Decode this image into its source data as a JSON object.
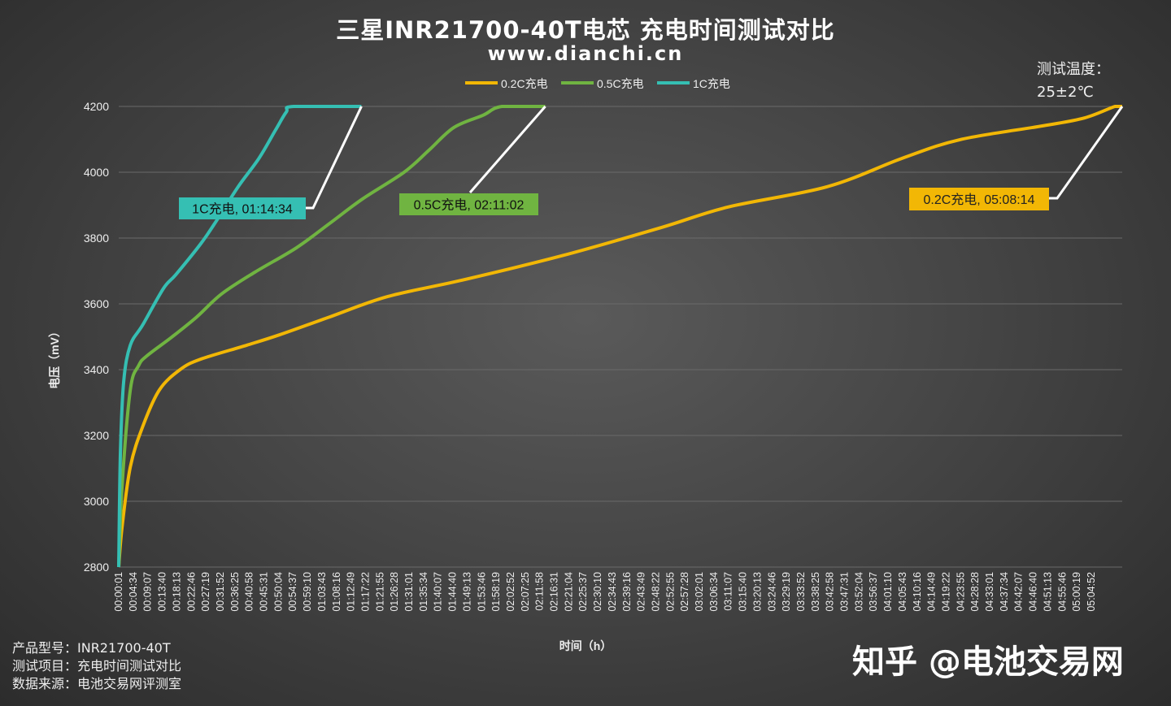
{
  "chart_data": {
    "type": "line",
    "title": "三星INR21700-40T电芯 充电时间测试对比",
    "subtitle": "www.dianchi.cn",
    "xlabel": "时间（h）",
    "ylabel": "电压（mV）",
    "ylim": [
      2800,
      4200
    ],
    "yticks": [
      2800,
      3000,
      3200,
      3400,
      3600,
      3800,
      4000,
      4200
    ],
    "xlim": [
      "00:00:01",
      "05:08:14"
    ],
    "grid": true,
    "legend_position": "top",
    "xtick_labels": [
      "00:00:01",
      "00:04:34",
      "00:09:07",
      "00:13:40",
      "00:18:13",
      "00:22:46",
      "00:27:19",
      "00:31:52",
      "00:36:25",
      "00:40:58",
      "00:45:31",
      "00:50:04",
      "00:54:37",
      "00:59:10",
      "01:03:43",
      "01:08:16",
      "01:12:49",
      "01:17:22",
      "01:21:55",
      "01:26:28",
      "01:31:01",
      "01:35:34",
      "01:40:07",
      "01:44:40",
      "01:49:13",
      "01:53:46",
      "01:58:19",
      "02:02:52",
      "02:07:25",
      "02:11:58",
      "02:16:31",
      "02:21:04",
      "02:25:37",
      "02:30:10",
      "02:34:43",
      "02:39:16",
      "02:43:49",
      "02:48:22",
      "02:52:55",
      "02:57:28",
      "03:02:01",
      "03:06:34",
      "03:11:07",
      "03:15:40",
      "03:20:13",
      "03:24:46",
      "03:29:19",
      "03:33:52",
      "03:38:25",
      "03:42:58",
      "03:47:31",
      "03:52:04",
      "03:56:37",
      "04:01:10",
      "04:05:43",
      "04:10:16",
      "04:14:49",
      "04:19:22",
      "04:23:55",
      "04:28:28",
      "04:33:01",
      "04:37:34",
      "04:42:07",
      "04:46:40",
      "04:51:13",
      "04:55:46",
      "05:00:19",
      "05:04:52"
    ],
    "series": [
      {
        "name": "0.2C充电",
        "color": "#f2b705",
        "end_label": "0.2C充电, 05:08:14",
        "points": [
          [
            "00:00:01",
            2800
          ],
          [
            "00:01:01",
            2919
          ],
          [
            "00:03:34",
            3104
          ],
          [
            "00:07:23",
            3227
          ],
          [
            "00:12:29",
            3338
          ],
          [
            "00:18:51",
            3400
          ],
          [
            "00:25:14",
            3432
          ],
          [
            "00:39:15",
            3474
          ],
          [
            "00:49:26",
            3506
          ],
          [
            "01:04:44",
            3560
          ],
          [
            "01:22:34",
            3622
          ],
          [
            "01:45:30",
            3672
          ],
          [
            "02:16:05",
            3746
          ],
          [
            "02:46:40",
            3832
          ],
          [
            "03:07:02",
            3894
          ],
          [
            "03:37:37",
            3956
          ],
          [
            "04:00:33",
            4042
          ],
          [
            "04:18:24",
            4099
          ],
          [
            "04:43:53",
            4141
          ],
          [
            "04:56:38",
            4165
          ],
          [
            "05:06:00",
            4200
          ],
          [
            "05:08:14",
            4200
          ]
        ]
      },
      {
        "name": "0.5C充电",
        "color": "#70b441",
        "end_label": "0.5C充电, 02:11:02",
        "points": [
          [
            "00:00:01",
            2800
          ],
          [
            "00:01:01",
            3042
          ],
          [
            "00:03:34",
            3338
          ],
          [
            "00:06:07",
            3412
          ],
          [
            "00:08:40",
            3442
          ],
          [
            "00:16:19",
            3499
          ],
          [
            "00:23:57",
            3560
          ],
          [
            "00:31:36",
            3630
          ],
          [
            "00:41:48",
            3696
          ],
          [
            "00:54:32",
            3770
          ],
          [
            "01:04:44",
            3844
          ],
          [
            "01:14:55",
            3919
          ],
          [
            "01:27:40",
            4000
          ],
          [
            "01:35:18",
            4067
          ],
          [
            "01:42:57",
            4136
          ],
          [
            "01:51:52",
            4173
          ],
          [
            "01:57:44",
            4200
          ],
          [
            "02:11:02",
            4200
          ]
        ]
      },
      {
        "name": "1C充电",
        "color": "#35bfb3",
        "end_label": "1C充电, 01:14:34",
        "points": [
          [
            "00:00:01",
            2800
          ],
          [
            "00:00:31",
            3141
          ],
          [
            "00:01:32",
            3363
          ],
          [
            "00:03:34",
            3474
          ],
          [
            "00:07:23",
            3536
          ],
          [
            "00:13:46",
            3647
          ],
          [
            "00:17:35",
            3689
          ],
          [
            "00:25:14",
            3783
          ],
          [
            "00:30:20",
            3857
          ],
          [
            "00:36:42",
            3956
          ],
          [
            "00:43:04",
            4042
          ],
          [
            "00:48:10",
            4128
          ],
          [
            "00:51:29",
            4183
          ],
          [
            "00:53:46",
            4200
          ],
          [
            "01:14:34",
            4200
          ]
        ]
      }
    ]
  },
  "annotation": {
    "temp_label": "测试温度：",
    "temp_value": "25±2℃"
  },
  "info": {
    "line1": "产品型号：INR21700-40T",
    "line2": "测试项目：充电时间测试对比",
    "line3": "数据来源：电池交易网评测室"
  },
  "watermark": "知乎 @电池交易网"
}
